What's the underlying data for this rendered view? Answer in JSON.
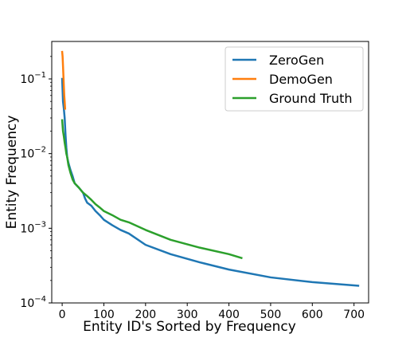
{
  "chart_data": {
    "type": "line",
    "title": "",
    "xlabel": "Entity ID's Sorted by Frequency",
    "ylabel": "Entity Frequency",
    "xlim": [
      -25,
      735
    ],
    "ylim": [
      0.0001,
      0.3
    ],
    "yscale": "log",
    "grid": false,
    "legend_position": "top-right",
    "x_ticks": [
      0,
      100,
      200,
      300,
      400,
      500,
      600,
      700
    ],
    "x_tick_labels": [
      "0",
      "100",
      "200",
      "300",
      "400",
      "500",
      "600",
      "700"
    ],
    "y_ticks": [
      0.1,
      0.01,
      0.001,
      0.0001
    ],
    "y_tick_labels": [
      {
        "base": "10",
        "exp": "−1"
      },
      {
        "base": "10",
        "exp": "−2"
      },
      {
        "base": "10",
        "exp": "−3"
      },
      {
        "base": "10",
        "exp": "−4"
      }
    ],
    "series": [
      {
        "name": "ZeroGen",
        "color": "#1f77b4",
        "x": [
          0,
          2,
          4,
          6,
          8,
          10,
          12,
          15,
          20,
          25,
          30,
          40,
          50,
          55,
          60,
          70,
          80,
          90,
          100,
          120,
          140,
          160,
          200,
          260,
          330,
          400,
          500,
          600,
          710
        ],
        "y": [
          0.1,
          0.05,
          0.04,
          0.03,
          0.018,
          0.012,
          0.009,
          0.0075,
          0.006,
          0.005,
          0.004,
          0.0035,
          0.003,
          0.0025,
          0.0022,
          0.002,
          0.0017,
          0.0015,
          0.0013,
          0.0011,
          0.00095,
          0.00085,
          0.0006,
          0.00045,
          0.00035,
          0.00028,
          0.00022,
          0.00019,
          0.00017
        ]
      },
      {
        "name": "DemoGen",
        "color": "#ff7f0e",
        "x": [
          0,
          1,
          2,
          3,
          4,
          5,
          6,
          7
        ],
        "y": [
          0.23,
          0.2,
          0.15,
          0.11,
          0.08,
          0.06,
          0.05,
          0.04
        ]
      },
      {
        "name": "Ground Truth",
        "color": "#2ca02c",
        "x": [
          0,
          2,
          4,
          6,
          8,
          10,
          12,
          15,
          20,
          25,
          30,
          40,
          50,
          60,
          70,
          80,
          90,
          100,
          120,
          140,
          160,
          200,
          260,
          330,
          400,
          430
        ],
        "y": [
          0.028,
          0.02,
          0.017,
          0.014,
          0.012,
          0.01,
          0.009,
          0.007,
          0.0055,
          0.0045,
          0.004,
          0.0035,
          0.003,
          0.0027,
          0.0024,
          0.0021,
          0.0019,
          0.0017,
          0.0015,
          0.0013,
          0.0012,
          0.00095,
          0.0007,
          0.00055,
          0.00045,
          0.0004
        ]
      }
    ]
  }
}
